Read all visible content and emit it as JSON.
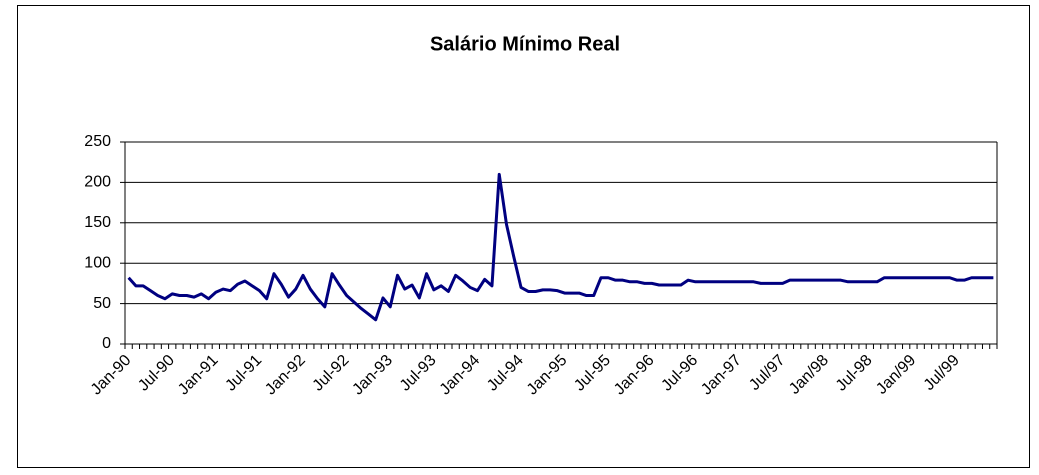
{
  "chart_data": {
    "type": "line",
    "title": "Salário Mínimo Real",
    "categories": [
      "Jan-90",
      null,
      null,
      null,
      null,
      null,
      "Jul-90",
      null,
      null,
      null,
      null,
      null,
      "Jan-91",
      null,
      null,
      null,
      null,
      null,
      "Jul-91",
      null,
      null,
      null,
      null,
      null,
      "Jan-92",
      null,
      null,
      null,
      null,
      null,
      "Jul-92",
      null,
      null,
      null,
      null,
      null,
      "Jan-93",
      null,
      null,
      null,
      null,
      null,
      "Jul-93",
      null,
      null,
      null,
      null,
      null,
      "Jan-94",
      null,
      null,
      null,
      null,
      null,
      "Jul-94",
      null,
      null,
      null,
      null,
      null,
      "Jan-95",
      null,
      null,
      null,
      null,
      null,
      "Jul-95",
      null,
      null,
      null,
      null,
      null,
      "Jan-96",
      null,
      null,
      null,
      null,
      null,
      "Jul-96",
      null,
      null,
      null,
      null,
      null,
      "Jan-97",
      null,
      null,
      null,
      null,
      null,
      "Jul/97",
      null,
      null,
      null,
      null,
      null,
      "Jan/98",
      null,
      null,
      null,
      null,
      null,
      "Jul-98",
      null,
      null,
      null,
      null,
      null,
      "Jan/99",
      null,
      null,
      null,
      null,
      null,
      "Jul/99",
      null,
      null,
      null,
      null,
      null
    ],
    "values": [
      82,
      72,
      72,
      66,
      60,
      56,
      62,
      60,
      60,
      58,
      62,
      56,
      64,
      68,
      66,
      74,
      78,
      72,
      66,
      56,
      87,
      74,
      58,
      68,
      85,
      68,
      56,
      46,
      87,
      73,
      60,
      52,
      44,
      37,
      30,
      57,
      46,
      85,
      68,
      73,
      57,
      87,
      67,
      72,
      65,
      85,
      78,
      70,
      66,
      80,
      72,
      210,
      148,
      108,
      70,
      65,
      65,
      67,
      67,
      66,
      63,
      63,
      63,
      60,
      60,
      82,
      82,
      79,
      79,
      77,
      77,
      75,
      75,
      73,
      73,
      73,
      73,
      79,
      77,
      77,
      77,
      77,
      77,
      77,
      77,
      77,
      77,
      75,
      75,
      75,
      75,
      79,
      79,
      79,
      79,
      79,
      79,
      79,
      79,
      77,
      77,
      77,
      77,
      77,
      82,
      82,
      82,
      82,
      82,
      82,
      82,
      82,
      82,
      82,
      79,
      79,
      82,
      82,
      82,
      82
    ],
    "color": "#000080",
    "ylim": [
      0,
      250
    ],
    "yticks": [
      0,
      50,
      100,
      150,
      200,
      250
    ],
    "grid": true
  }
}
